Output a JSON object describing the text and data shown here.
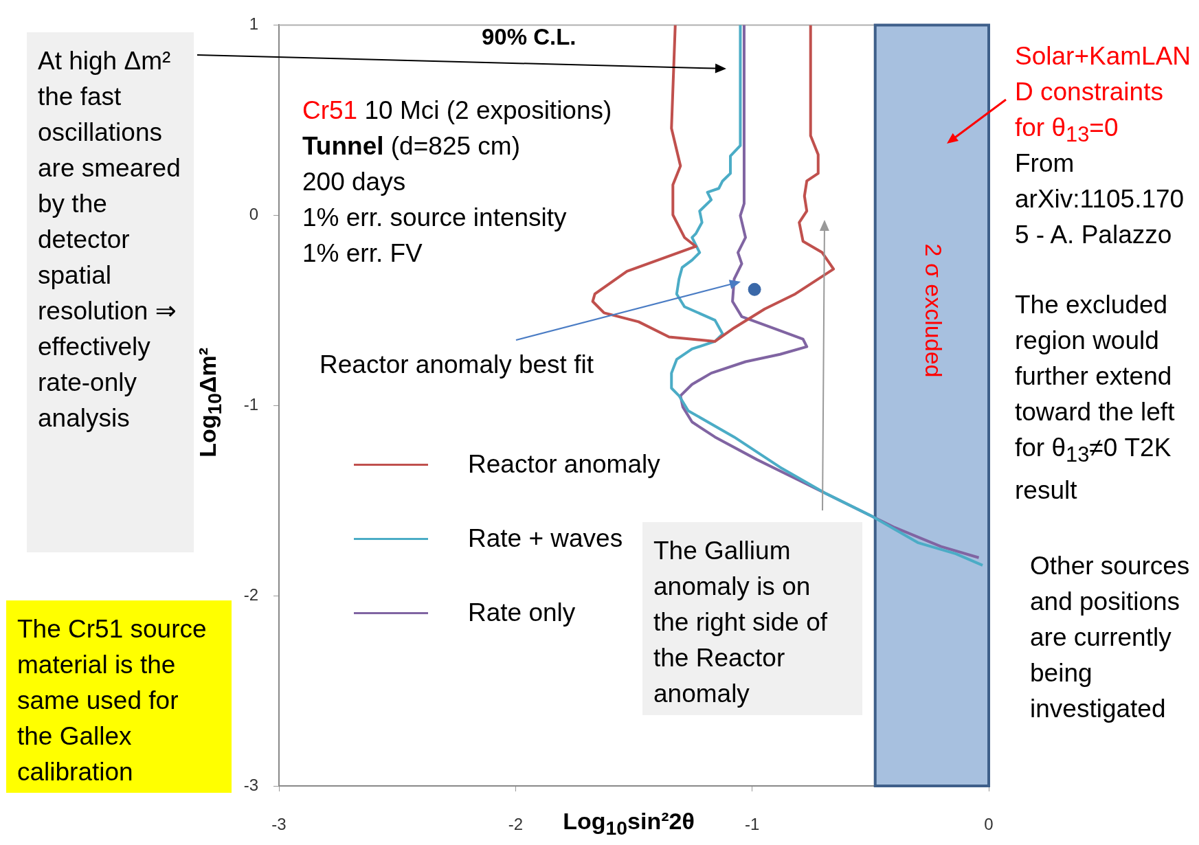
{
  "chart_data": {
    "type": "line",
    "xlabel": "Log$_{10}$sin²2θ",
    "ylabel": "Log$_{10}$Δm²",
    "xlim": [
      -3,
      0
    ],
    "ylim": [
      -3,
      1
    ],
    "xticks": [
      -3,
      -2,
      -1,
      0
    ],
    "yticks": [
      -3,
      -2,
      -1,
      0,
      1
    ],
    "legend": "left",
    "series": [
      {
        "name": "Reactor anomaly",
        "color": "#c0504d",
        "x": [
          -1.325,
          -1.341,
          -1.303,
          -1.335,
          -1.335,
          -1.286,
          -1.238,
          -1.529,
          -1.665,
          -1.674,
          -1.626,
          -1.48,
          -1.351,
          -1.157,
          -1.076,
          -0.947,
          -0.818,
          -0.656,
          -0.704,
          -0.785,
          -0.801,
          -0.769,
          -0.779,
          -0.769,
          -0.721,
          -0.721,
          -0.753,
          -0.753
        ],
        "values": [
          1,
          0.457,
          0.259,
          0.16,
          0.002,
          -0.117,
          -0.164,
          -0.295,
          -0.414,
          -0.453,
          -0.513,
          -0.56,
          -0.64,
          -0.663,
          -0.592,
          -0.493,
          -0.414,
          -0.283,
          -0.196,
          -0.137,
          -0.038,
          0.022,
          0.101,
          0.18,
          0.22,
          0.319,
          0.418,
          1
        ]
      },
      {
        "name": "Rate + waves",
        "color": "#4bacc6",
        "x": [
          -1.05,
          -1.05,
          -1.092,
          -1.092,
          -1.125,
          -1.141,
          -1.189,
          -1.173,
          -1.222,
          -1.212,
          -1.238,
          -1.254,
          -1.222,
          -1.254,
          -1.296,
          -1.309,
          -1.319,
          -1.286,
          -1.157,
          -1.125,
          -1.157,
          -1.254,
          -1.319,
          -1.341,
          -1.341,
          -1.309,
          -1.27,
          -1.076,
          -0.882,
          -0.688,
          -0.494,
          -0.3,
          -0.139,
          -0.026
        ],
        "values": [
          1,
          0.366,
          0.311,
          0.22,
          0.18,
          0.141,
          0.121,
          0.081,
          0.022,
          -0.038,
          -0.097,
          -0.117,
          -0.196,
          -0.236,
          -0.275,
          -0.335,
          -0.414,
          -0.481,
          -0.552,
          -0.624,
          -0.663,
          -0.703,
          -0.758,
          -0.83,
          -0.909,
          -0.949,
          -1.028,
          -1.166,
          -1.325,
          -1.463,
          -1.582,
          -1.721,
          -1.78,
          -1.84
        ]
      },
      {
        "name": "Rate only",
        "color": "#8064a2",
        "x": [
          -1.034,
          -1.034,
          -1.05,
          -1.028,
          -1.06,
          -1.044,
          -1.06,
          -1.076,
          -1.083,
          -1.044,
          -0.915,
          -0.785,
          -0.769,
          -0.882,
          -1.028,
          -1.173,
          -1.254,
          -1.303,
          -1.293,
          -1.254,
          -1.157,
          -0.979,
          -0.785,
          -0.591,
          -0.397,
          -0.203,
          -0.042
        ],
        "values": [
          1,
          0.061,
          -0.002,
          -0.117,
          -0.196,
          -0.255,
          -0.295,
          -0.335,
          -0.453,
          -0.533,
          -0.592,
          -0.651,
          -0.691,
          -0.731,
          -0.77,
          -0.83,
          -0.889,
          -0.949,
          -1.008,
          -1.087,
          -1.166,
          -1.285,
          -1.404,
          -1.523,
          -1.642,
          -1.741,
          -1.8
        ]
      },
      {
        "type": "scatter",
        "color": "#3a68a8",
        "marker": "circle",
        "x": [
          -0.99
        ],
        "values": [
          -0.39
        ]
      }
    ],
    "bands": [
      {
        "axis": "x",
        "from": -0.48,
        "to": 0,
        "label": "2 σ excluded",
        "color": "#a7c0df"
      }
    ],
    "annotations": [
      "90% C.L.",
      "Cr51 10 Mci (2 expositions)",
      "Tunnel (d=825 cm)",
      "200 days",
      "1% err. source intensity",
      "1% err. FV",
      "Reactor anomaly best fit",
      "At high Δm² the fast oscillations are smeared by the detector spatial resolution ⇒ effectively rate-only analysis",
      "The Cr51 source material is the same used for the Gallex calibration",
      "The Gallium anomaly is on the right side of the Reactor anomaly",
      "Solar+KamLAND constraints for θ$_{13}$=0",
      "From arXiv:1105.1705 - A. Palazzo",
      "The excluded region would further extend toward the left for θ$_{13}$≠0 T2K result",
      "Other sources and positions are currently being investigated"
    ]
  }
}
